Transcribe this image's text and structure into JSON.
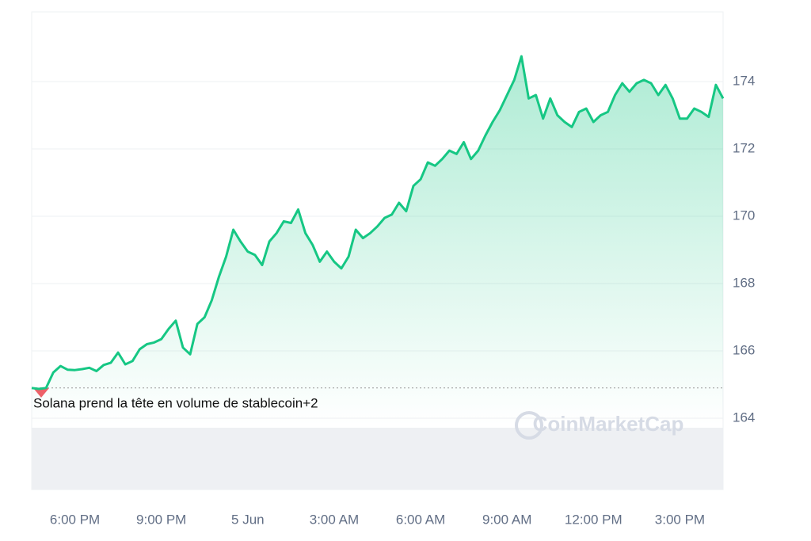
{
  "chart_data": {
    "type": "line",
    "annotation": "Solana prend la tête en volume de stablecoin+2",
    "watermark": "CoinMarketCap",
    "color": "#16c784",
    "reference_line": 164.9,
    "xlim": [
      0,
      96
    ],
    "xticks": [
      {
        "value": 6,
        "label": "6:00 PM"
      },
      {
        "value": 18,
        "label": "9:00 PM"
      },
      {
        "value": 30,
        "label": "5 Jun"
      },
      {
        "value": 42,
        "label": "3:00 AM"
      },
      {
        "value": 54,
        "label": "6:00 AM"
      },
      {
        "value": 66,
        "label": "9:00 AM"
      },
      {
        "value": 78,
        "label": "12:00 PM"
      },
      {
        "value": 90,
        "label": "3:00 PM"
      }
    ],
    "ylim": [
      163.8,
      176
    ],
    "yticks": [
      164,
      166,
      168,
      170,
      172,
      174
    ],
    "grid": true,
    "values": [
      164.9,
      164.87,
      164.9,
      165.36,
      165.55,
      165.44,
      165.43,
      165.46,
      165.5,
      165.4,
      165.58,
      165.65,
      165.95,
      165.6,
      165.7,
      166.05,
      166.2,
      166.25,
      166.35,
      166.65,
      166.9,
      166.1,
      165.9,
      166.8,
      167.0,
      167.5,
      168.2,
      168.8,
      169.6,
      169.25,
      168.95,
      168.85,
      168.55,
      169.25,
      169.5,
      169.85,
      169.8,
      170.2,
      169.5,
      169.15,
      168.65,
      168.95,
      168.65,
      168.45,
      168.8,
      169.6,
      169.35,
      169.5,
      169.7,
      169.95,
      170.05,
      170.4,
      170.15,
      170.9,
      171.1,
      171.6,
      171.5,
      171.7,
      171.95,
      171.85,
      172.2,
      171.7,
      171.95,
      172.4,
      172.8,
      173.15,
      173.6,
      174.05,
      174.75,
      173.5,
      173.6,
      172.9,
      173.5,
      173.0,
      172.8,
      172.65,
      173.1,
      173.2,
      172.8,
      173.0,
      173.1,
      173.6,
      173.95,
      173.7,
      173.95,
      174.05,
      173.95,
      173.6,
      173.9,
      173.5,
      172.9,
      172.9,
      173.2,
      173.1,
      172.95,
      173.9,
      173.5
    ]
  }
}
